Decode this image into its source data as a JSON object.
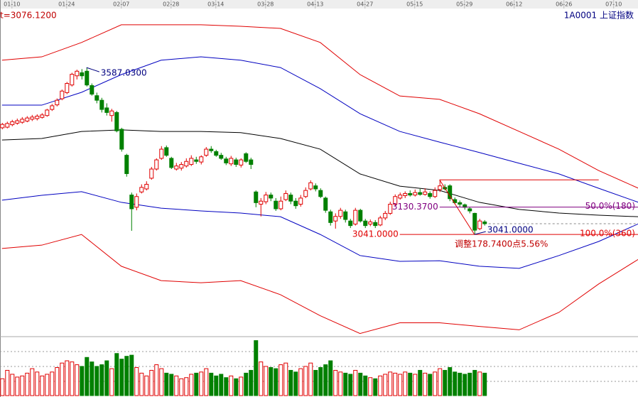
{
  "chart_data": {
    "type": "candlestick",
    "title": "1A0001 上证指数",
    "last_price": {
      "value": 3076.12,
      "label": "t=3076.1200"
    },
    "xlim": [
      -0.4,
      127.9
    ],
    "xticks": [
      {
        "value": 2,
        "label": "01-10"
      },
      {
        "value": 13,
        "label": "01-24"
      },
      {
        "value": 24,
        "label": "02-07"
      },
      {
        "value": 34,
        "label": "02-28"
      },
      {
        "value": 43,
        "label": "03-14"
      },
      {
        "value": 53,
        "label": "03-28"
      },
      {
        "value": 63,
        "label": "04-13"
      },
      {
        "value": 73,
        "label": "04-27"
      },
      {
        "value": 83,
        "label": "05-15"
      },
      {
        "value": 93,
        "label": "05-29"
      },
      {
        "value": 103,
        "label": "06-12"
      },
      {
        "value": 113,
        "label": "06-26"
      },
      {
        "value": 123,
        "label": "07-10"
      }
    ],
    "ylim": [
      2716,
      3808
    ],
    "up_color": "#e00000",
    "down_color": "#008000",
    "open": [
      3390,
      3392,
      3400,
      3405,
      3408,
      3412,
      3418,
      3420,
      3424,
      3430,
      3450,
      3465,
      3485,
      3505,
      3530,
      3560,
      3570,
      3575,
      3528,
      3495,
      3480,
      3455,
      3430,
      3440,
      3385,
      3300,
      3170,
      3130,
      3180,
      3190,
      3225,
      3255,
      3290,
      3325,
      3290,
      3255,
      3258,
      3265,
      3270,
      3285,
      3278,
      3300,
      3320,
      3312,
      3300,
      3288,
      3272,
      3285,
      3268,
      3305,
      3285,
      3180,
      3140,
      3148,
      3170,
      3150,
      3125,
      3155,
      3170,
      3150,
      3140,
      3165,
      3190,
      3200,
      3185,
      3160,
      3115,
      3085,
      3100,
      3115,
      3085,
      3075,
      3120,
      3085,
      3075,
      3080,
      3072,
      3095,
      3110,
      3140,
      3160,
      3168,
      3175,
      3170,
      3178,
      3172,
      3175,
      3165,
      3188,
      3195,
      3200,
      3155,
      3145,
      3138,
      3125,
      3110,
      3060,
      3082
    ],
    "close": [
      3401,
      3404,
      3410,
      3413,
      3418,
      3422,
      3425,
      3428,
      3432,
      3448,
      3462,
      3480,
      3510,
      3535,
      3565,
      3575,
      3560,
      3530,
      3500,
      3480,
      3450,
      3440,
      3445,
      3380,
      3320,
      3240,
      3125,
      3165,
      3195,
      3205,
      3255,
      3285,
      3320,
      3300,
      3260,
      3265,
      3270,
      3280,
      3290,
      3280,
      3295,
      3320,
      3315,
      3300,
      3290,
      3275,
      3290,
      3270,
      3285,
      3280,
      3270,
      3145,
      3150,
      3170,
      3160,
      3125,
      3150,
      3175,
      3150,
      3135,
      3160,
      3185,
      3210,
      3190,
      3165,
      3120,
      3080,
      3100,
      3120,
      3090,
      3070,
      3120,
      3085,
      3070,
      3082,
      3070,
      3095,
      3110,
      3140,
      3165,
      3170,
      3175,
      3170,
      3178,
      3172,
      3180,
      3165,
      3185,
      3200,
      3190,
      3158,
      3145,
      3140,
      3130,
      3118,
      3055,
      3085,
      3076.12
    ],
    "high": [
      3406,
      3410,
      3416,
      3420,
      3425,
      3428,
      3432,
      3434,
      3438,
      3452,
      3468,
      3486,
      3515,
      3540,
      3570,
      3580,
      3582,
      3587.03,
      3535,
      3505,
      3488,
      3470,
      3452,
      3445,
      3390,
      3305,
      3178,
      3175,
      3205,
      3215,
      3262,
      3290,
      3330,
      3332,
      3295,
      3275,
      3278,
      3290,
      3300,
      3295,
      3300,
      3327,
      3330,
      3318,
      3308,
      3295,
      3298,
      3292,
      3290,
      3310,
      3292,
      3185,
      3160,
      3180,
      3178,
      3160,
      3165,
      3185,
      3178,
      3160,
      3170,
      3195,
      3218,
      3208,
      3192,
      3165,
      3122,
      3110,
      3128,
      3122,
      3092,
      3128,
      3125,
      3092,
      3090,
      3088,
      3102,
      3118,
      3148,
      3172,
      3178,
      3182,
      3185,
      3188,
      3190,
      3192,
      3182,
      3195,
      3219.74,
      3205,
      3205,
      3162,
      3152,
      3142,
      3130,
      3112,
      3092,
      3088
    ],
    "low": [
      3385,
      3388,
      3395,
      3400,
      3403,
      3408,
      3412,
      3414,
      3420,
      3426,
      3445,
      3460,
      3480,
      3500,
      3525,
      3548,
      3548,
      3525,
      3495,
      3470,
      3440,
      3430,
      3410,
      3375,
      3312,
      3230,
      3053,
      3120,
      3175,
      3185,
      3220,
      3250,
      3285,
      3295,
      3255,
      3250,
      3250,
      3260,
      3265,
      3272,
      3270,
      3295,
      3308,
      3295,
      3285,
      3268,
      3265,
      3262,
      3260,
      3275,
      3255,
      3130,
      3100,
      3140,
      3150,
      3118,
      3120,
      3150,
      3140,
      3125,
      3132,
      3160,
      3185,
      3182,
      3160,
      3112,
      3070,
      3060,
      3092,
      3080,
      3062,
      3070,
      3080,
      3062,
      3068,
      3062,
      3068,
      3088,
      3105,
      3135,
      3155,
      3160,
      3165,
      3165,
      3168,
      3168,
      3158,
      3160,
      3180,
      3185,
      3150,
      3140,
      3132,
      3122,
      3110,
      3041,
      3055,
      3070
    ],
    "volume_lim": [
      0,
      100
    ],
    "volume": [
      30,
      45,
      38,
      33,
      35,
      40,
      48,
      42,
      35,
      38,
      42,
      50,
      58,
      62,
      60,
      55,
      52,
      68,
      60,
      52,
      55,
      62,
      48,
      75,
      65,
      70,
      72,
      50,
      40,
      35,
      45,
      55,
      48,
      40,
      38,
      35,
      30,
      32,
      38,
      40,
      42,
      48,
      40,
      35,
      38,
      32,
      35,
      30,
      33,
      40,
      45,
      98,
      60,
      52,
      50,
      48,
      55,
      58,
      45,
      42,
      48,
      52,
      58,
      45,
      50,
      55,
      62,
      45,
      42,
      40,
      38,
      45,
      40,
      35,
      32,
      30,
      35,
      38,
      42,
      40,
      38,
      42,
      40,
      38,
      45,
      40,
      38,
      42,
      48,
      45,
      50,
      42,
      40,
      38,
      40,
      45,
      42,
      40
    ],
    "band_x": [
      0,
      8,
      16,
      24,
      32,
      40,
      48,
      56,
      64,
      72,
      80,
      88,
      96,
      104,
      112,
      120,
      128
    ],
    "bands": [
      {
        "color": "#e00000",
        "values": [
          3611,
          3622,
          3669,
          3727,
          3727,
          3727,
          3722,
          3715,
          3669,
          3564,
          3494,
          3483,
          3436,
          3378,
          3320,
          3250,
          3192
        ]
      },
      {
        "color": "#0000c0",
        "values": [
          3464,
          3464,
          3506,
          3564,
          3611,
          3622,
          3611,
          3587,
          3518,
          3436,
          3378,
          3343,
          3309,
          3274,
          3239,
          3192,
          3146
        ]
      },
      {
        "color": "#000000",
        "values": [
          3350,
          3355,
          3378,
          3383,
          3378,
          3378,
          3374,
          3355,
          3320,
          3239,
          3199,
          3185,
          3146,
          3123,
          3111,
          3104,
          3099
        ]
      },
      {
        "color": "#0000c0",
        "values": [
          3153,
          3169,
          3181,
          3146,
          3127,
          3118,
          3111,
          3099,
          3041,
          2972,
          2953,
          2955,
          2937,
          2930,
          2972,
          3018,
          3076
        ]
      },
      {
        "color": "#e00000",
        "values": [
          2995,
          3006,
          3041,
          2937,
          2890,
          2883,
          2890,
          2844,
          2775,
          2717,
          2752,
          2752,
          2740,
          2729,
          2786,
          2879,
          2960
        ]
      }
    ],
    "peak_label": {
      "value": 3587.03,
      "label": "3587.0300"
    },
    "swing_high": 3219.74,
    "trough_label": {
      "value": 3041,
      "label": "3041.0000"
    },
    "fib_levels": [
      {
        "value": 3130.37,
        "label": "3130.3700",
        "ratio_label": "50.0%(180)"
      },
      {
        "value": 3041,
        "label": "3041.0000",
        "ratio_label": "100.0%(360)"
      }
    ],
    "adjust_label": "调整178.7400点5.56%"
  }
}
